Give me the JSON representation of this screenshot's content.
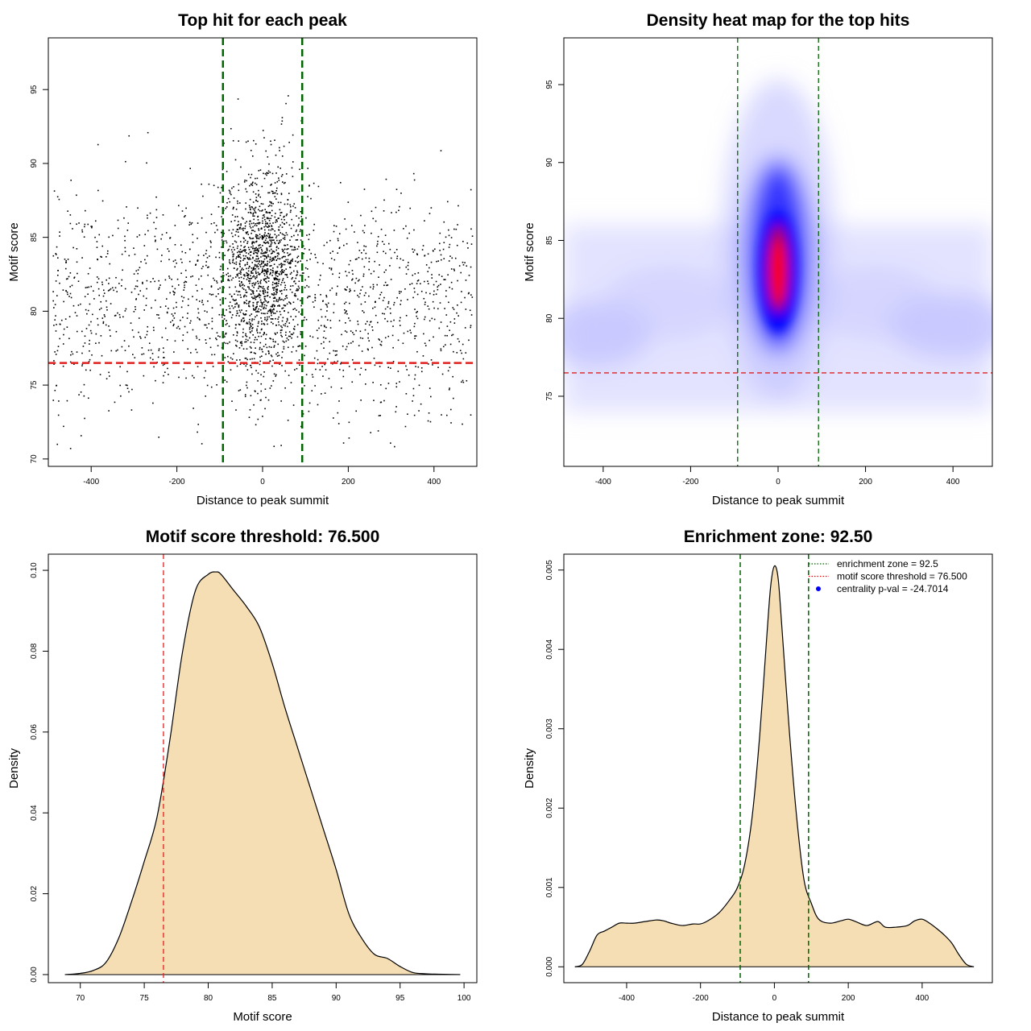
{
  "chart_data": [
    {
      "type": "scatter",
      "title": "Top hit for each peak",
      "xlabel": "Distance to peak summit",
      "ylabel": "Motif score",
      "xlim": [
        -500,
        500
      ],
      "ylim": [
        69.5,
        98.5
      ],
      "xticks": [
        -400,
        -200,
        0,
        200,
        400
      ],
      "yticks": [
        70,
        75,
        80,
        85,
        90,
        95
      ],
      "tick_labels_x": [
        "-400",
        "-200",
        "0",
        "200",
        "400"
      ],
      "tick_labels_y": [
        "70",
        "75",
        "80",
        "85",
        "90",
        "95"
      ],
      "point_color": "#000000",
      "points_description_counts": {
        "background_points": 1500,
        "central_points": 1300
      },
      "vlines": {
        "x": [
          -92.5,
          92.5
        ],
        "color": "#006400",
        "style": "dashed"
      },
      "hline": {
        "y": 76.5,
        "color": "#dd2222",
        "style": "dashed"
      },
      "grid": false
    },
    {
      "type": "heatmap",
      "title": "Density heat map for the top hits",
      "xlabel": "Distance to peak summit",
      "ylabel": "Motif score",
      "xlim": [
        -490,
        490
      ],
      "ylim": [
        70.5,
        98
      ],
      "xticks": [
        -400,
        -200,
        0,
        200,
        400
      ],
      "yticks": [
        75,
        80,
        85,
        90,
        95
      ],
      "tick_labels_x": [
        "-400",
        "-200",
        "0",
        "200",
        "400"
      ],
      "tick_labels_y": [
        "75",
        "80",
        "85",
        "90",
        "95"
      ],
      "colormap": [
        "#ffffff",
        "#0000ff",
        "#ff0000"
      ],
      "density_peak": {
        "x": 0,
        "y": 83
      },
      "vlines": {
        "x": [
          -92.5,
          92.5
        ],
        "color": "#006400",
        "style": "dashed"
      },
      "hline": {
        "y": 76.5,
        "color": "#dd2222",
        "style": "dashed"
      },
      "grid": false
    },
    {
      "type": "area",
      "title": "Motif score threshold: 76.500",
      "xlabel": "Motif score",
      "ylabel": "Density",
      "xlim": [
        67.5,
        101
      ],
      "ylim": [
        -0.002,
        0.104
      ],
      "xticks": [
        70,
        75,
        80,
        85,
        90,
        95,
        100
      ],
      "yticks": [
        0.0,
        0.02,
        0.04,
        0.06,
        0.08,
        0.1
      ],
      "tick_labels_x": [
        "70",
        "75",
        "80",
        "85",
        "90",
        "95",
        "100"
      ],
      "tick_labels_y": [
        "0.00",
        "0.02",
        "0.04",
        "0.06",
        "0.08",
        "0.10"
      ],
      "fill_color": "#f5deb3",
      "line_color": "#000000",
      "x": [
        68.8,
        70,
        71,
        72,
        73,
        74,
        75,
        76,
        77,
        78,
        79,
        80,
        80.6,
        81,
        82,
        83,
        84,
        85,
        86,
        87,
        88,
        89,
        90,
        91,
        92,
        93,
        94,
        95,
        96,
        97,
        98,
        99.7
      ],
      "values": [
        0.0,
        0.0003,
        0.001,
        0.003,
        0.009,
        0.018,
        0.028,
        0.039,
        0.058,
        0.08,
        0.095,
        0.099,
        0.0996,
        0.099,
        0.095,
        0.091,
        0.086,
        0.077,
        0.066,
        0.056,
        0.046,
        0.036,
        0.026,
        0.015,
        0.009,
        0.005,
        0.004,
        0.002,
        0.0005,
        0.0002,
        0.0001,
        0.0
      ],
      "vlines": {
        "x": [
          76.5
        ],
        "color": "#dd2222",
        "style": "dashed"
      },
      "grid": false
    },
    {
      "type": "area",
      "title": "Enrichment zone: 92.50",
      "xlabel": "Distance to peak summit",
      "ylabel": "Density",
      "xlim": [
        -570,
        590
      ],
      "ylim": [
        -0.0002,
        0.0052
      ],
      "xticks": [
        -400,
        -200,
        0,
        200,
        400
      ],
      "yticks": [
        0.0,
        0.001,
        0.002,
        0.003,
        0.004,
        0.005
      ],
      "tick_labels_x": [
        "-400",
        "-200",
        "0",
        "200",
        "400"
      ],
      "tick_labels_y": [
        "0.000",
        "0.001",
        "0.002",
        "0.003",
        "0.004",
        "0.005"
      ],
      "fill_color": "#f5deb3",
      "line_color": "#000000",
      "x": [
        -540,
        -520,
        -500,
        -480,
        -460,
        -440,
        -420,
        -400,
        -380,
        -350,
        -320,
        -300,
        -280,
        -250,
        -220,
        -200,
        -180,
        -150,
        -120,
        -100,
        -80,
        -60,
        -40,
        -20,
        -10,
        0,
        10,
        20,
        40,
        60,
        80,
        100,
        120,
        150,
        180,
        200,
        220,
        250,
        280,
        300,
        330,
        360,
        380,
        400,
        420,
        440,
        460,
        480,
        500,
        520,
        540
      ],
      "values": [
        0.0,
        3e-05,
        0.0002,
        0.0004,
        0.00045,
        0.0005,
        0.00055,
        0.00055,
        0.00055,
        0.00057,
        0.00059,
        0.00058,
        0.00055,
        0.00052,
        0.00054,
        0.00054,
        0.00058,
        0.00068,
        0.00085,
        0.001,
        0.0013,
        0.0019,
        0.0029,
        0.0042,
        0.0048,
        0.00505,
        0.0049,
        0.0043,
        0.003,
        0.0019,
        0.0011,
        0.0008,
        0.0006,
        0.00055,
        0.00058,
        0.0006,
        0.00057,
        0.00052,
        0.00057,
        0.0005,
        0.0005,
        0.00052,
        0.00058,
        0.0006,
        0.00055,
        0.00048,
        0.0004,
        0.0003,
        0.00015,
        3e-05,
        0.0
      ],
      "vlines": {
        "x": [
          -92.5,
          92.5
        ],
        "color": "#006400",
        "style": "dashed"
      },
      "legend": {
        "position": "top-right",
        "entries": [
          {
            "label": "enrichment zone = 92.5",
            "color": "#006400",
            "kind": "dotted-line"
          },
          {
            "label": "motif score threshold = 76.500",
            "color": "#ff0000",
            "kind": "dotted-line"
          },
          {
            "label": "centrality p-val = -24.7014",
            "color": "#0000ff",
            "kind": "point"
          }
        ]
      },
      "grid": false
    }
  ]
}
